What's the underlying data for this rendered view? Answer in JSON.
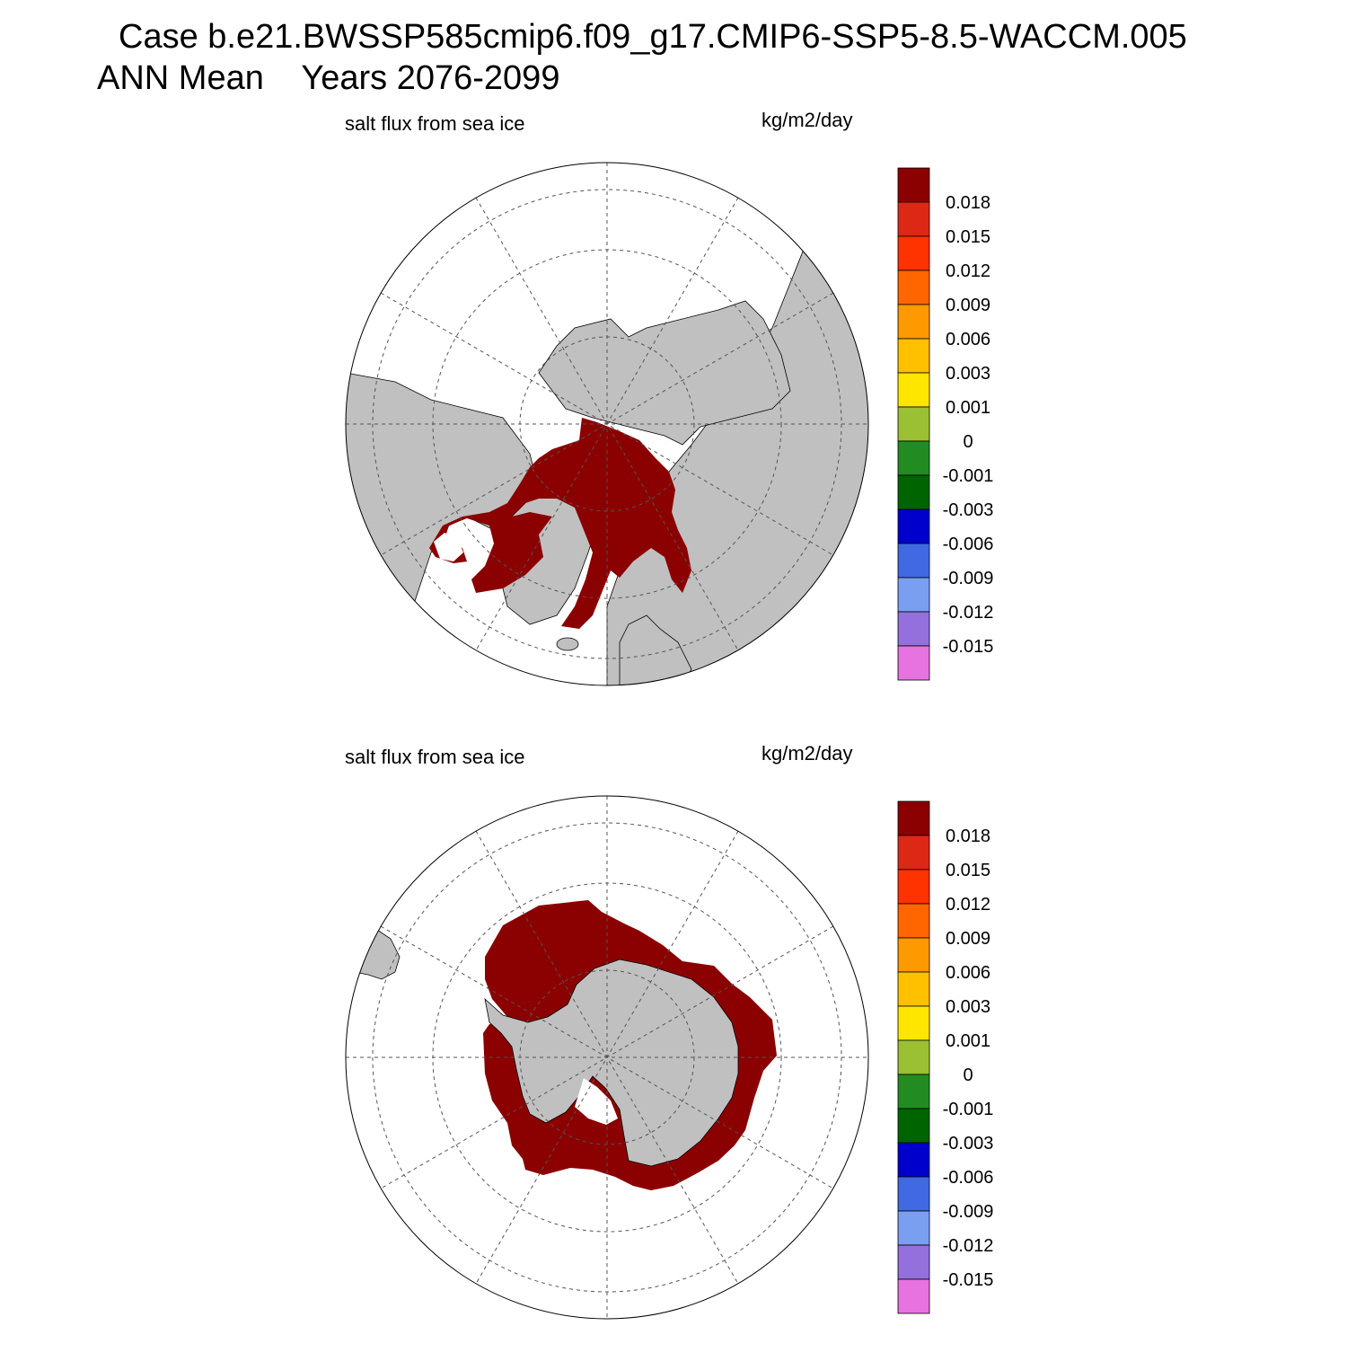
{
  "header": {
    "line1": "Case b.e21.BWSSP585cmip6.f09_g17.CMIP6-SSP5-8.5-WACCM.005",
    "line2": "ANN Mean    Years 2076-2099"
  },
  "panels": [
    {
      "id": "north",
      "title": "salt flux from sea ice",
      "units": "kg/m2/day",
      "pole": "north"
    },
    {
      "id": "south",
      "title": "salt flux from sea ice",
      "units": "kg/m2/day",
      "pole": "south"
    }
  ],
  "colors": {
    "land": "#c0c0c0",
    "ice_flux": "#8b0000",
    "ocean": "#ffffff",
    "grid": "#555555"
  },
  "colorbar": {
    "levels": [
      "0.018",
      "0.015",
      "0.012",
      "0.009",
      "0.006",
      "0.003",
      "0.001",
      "0",
      "-0.001",
      "-0.003",
      "-0.006",
      "-0.009",
      "-0.012",
      "-0.015"
    ],
    "colors": [
      "#8b0000",
      "#dc2814",
      "#ff3300",
      "#ff6600",
      "#ff9900",
      "#ffc000",
      "#ffe600",
      "#9bc034",
      "#228b22",
      "#006400",
      "#0000cd",
      "#4169e1",
      "#7b9ff0",
      "#9370db",
      "#e673e0"
    ]
  }
}
